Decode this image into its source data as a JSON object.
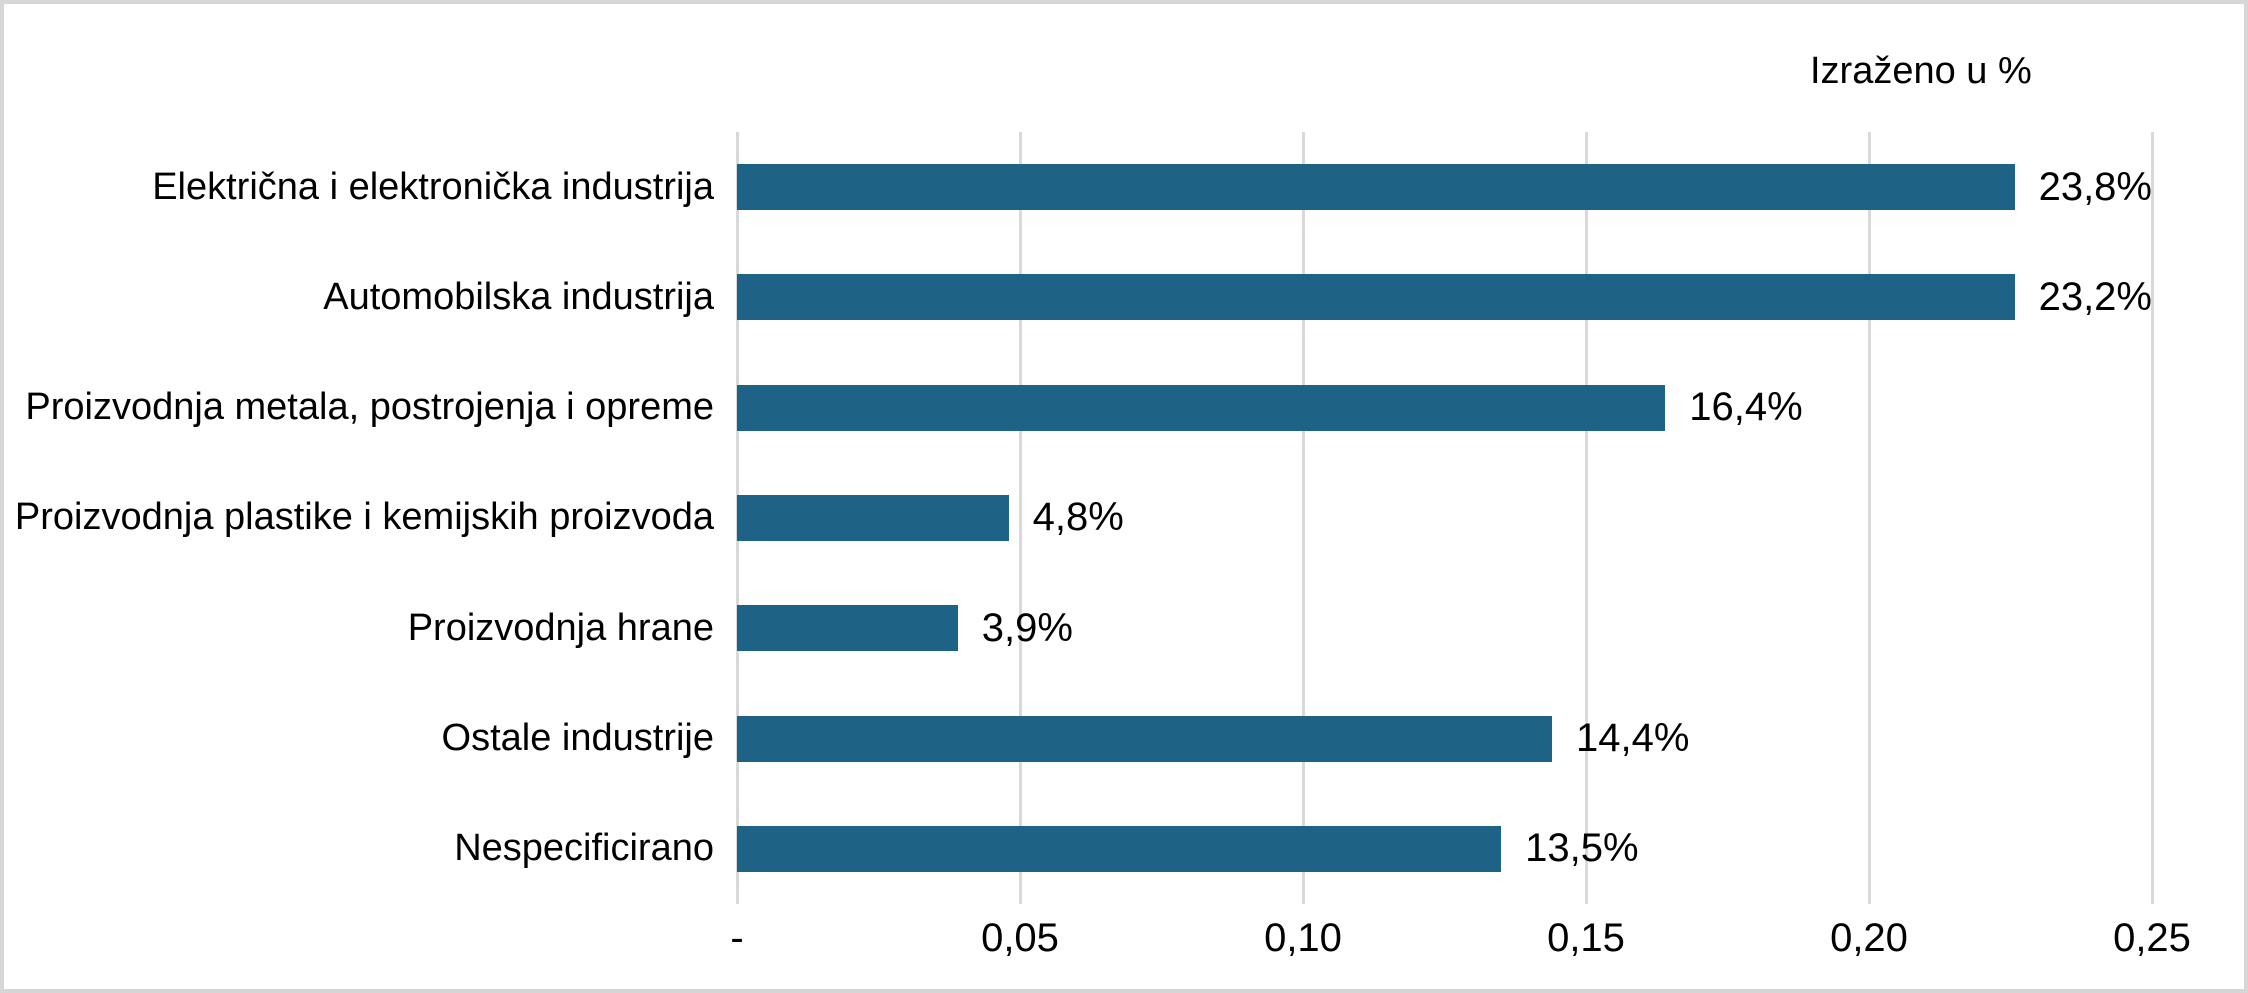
{
  "colors": {
    "bar": "#1e6286",
    "gridline": "#d9d9d9",
    "frame_border": "#d6d6d6",
    "background": "#ffffff",
    "text": "#000000"
  },
  "chart_data": {
    "type": "bar",
    "orientation": "horizontal",
    "title": "Izraženo u %",
    "categories": [
      "Električna i elektronička industrija",
      "Automobilska industrija",
      "Proizvodnja metala, postrojenja i opreme",
      "Proizvodnja plastike i kemijskih proizvoda",
      "Proizvodnja hrane",
      "Ostale industrije",
      "Nespecificirano"
    ],
    "values": [
      0.238,
      0.232,
      0.164,
      0.048,
      0.039,
      0.144,
      0.135
    ],
    "data_labels": [
      "23,8%",
      "23,2%",
      "16,4%",
      "4,8%",
      "3,9%",
      "14,4%",
      "13,5%"
    ],
    "x_ticks": [
      {
        "value": 0.0,
        "label": "-"
      },
      {
        "value": 0.05,
        "label": "0,05"
      },
      {
        "value": 0.1,
        "label": "0,10"
      },
      {
        "value": 0.15,
        "label": "0,15"
      },
      {
        "value": 0.2,
        "label": "0,20"
      },
      {
        "value": 0.25,
        "label": "0,25"
      }
    ],
    "xlim": [
      0,
      0.25
    ],
    "grid": true,
    "legend": false,
    "xlabel": "",
    "ylabel": ""
  }
}
